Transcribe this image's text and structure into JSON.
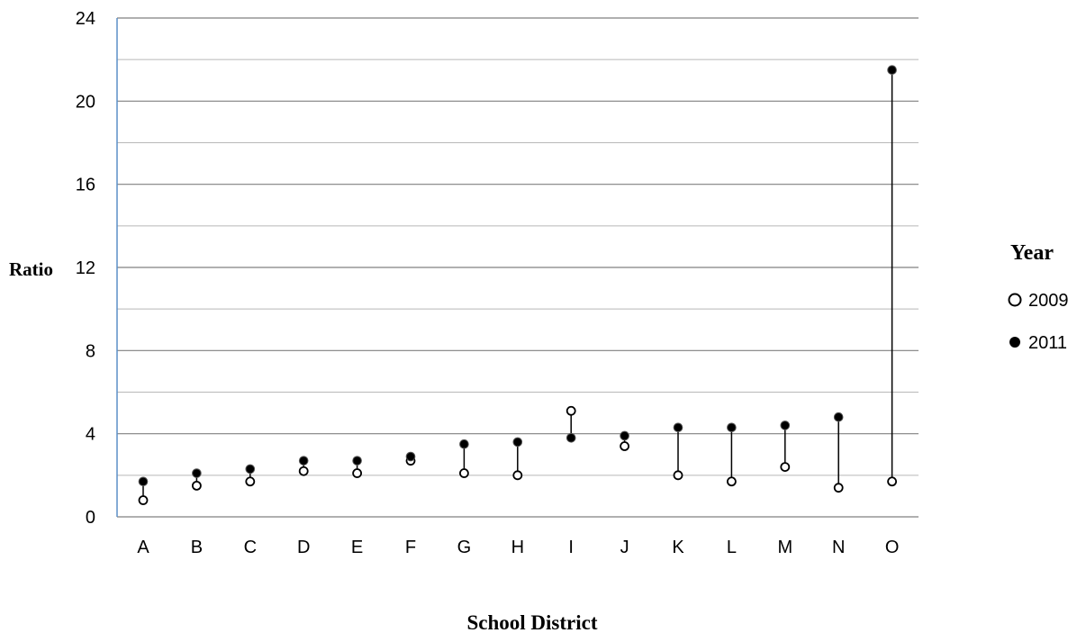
{
  "chart_data": {
    "type": "scatter",
    "title": "",
    "xlabel": "School District",
    "ylabel": "Ratio",
    "categories": [
      "A",
      "B",
      "C",
      "D",
      "E",
      "F",
      "G",
      "H",
      "I",
      "J",
      "K",
      "L",
      "M",
      "N",
      "O"
    ],
    "ylim": [
      0,
      24
    ],
    "yticks": [
      "0",
      "4",
      "8",
      "12",
      "16",
      "20",
      "24"
    ],
    "minor_gridlines": [
      2,
      6,
      10,
      14,
      18,
      22
    ],
    "grid": true,
    "legend_title": "Year",
    "legend_position": "right",
    "series": [
      {
        "name": "2009",
        "marker": "open-circle",
        "values": [
          0.8,
          1.5,
          1.7,
          2.2,
          2.1,
          2.7,
          2.1,
          2.0,
          5.1,
          3.4,
          2.0,
          1.7,
          2.4,
          1.4,
          1.7
        ]
      },
      {
        "name": "2011",
        "marker": "filled-circle",
        "values": [
          1.7,
          2.1,
          2.3,
          2.7,
          2.7,
          2.9,
          3.5,
          3.6,
          3.8,
          3.9,
          4.3,
          4.3,
          4.4,
          4.8,
          21.5
        ]
      }
    ],
    "connector": "vertical line between 2009 and 2011 values",
    "colors": {
      "major_grid": "#808080",
      "minor_grid": "#b8b8b8",
      "y_axis": "#5b8fc7",
      "marker": "#000000"
    }
  }
}
